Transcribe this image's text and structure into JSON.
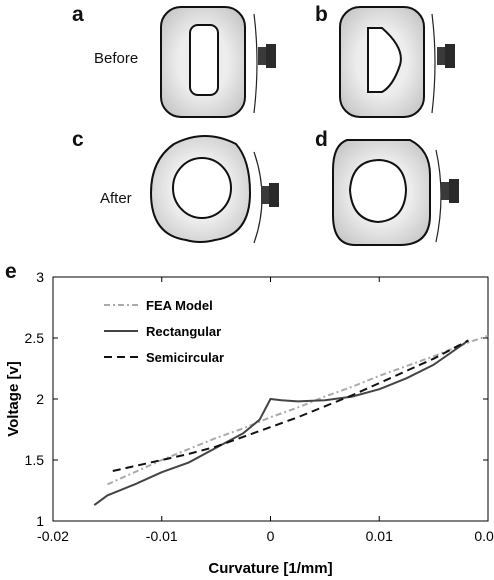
{
  "panels": {
    "a": "a",
    "b": "b",
    "c": "c",
    "d": "d",
    "e": "e"
  },
  "side_labels": {
    "before": "Before",
    "after": "After"
  },
  "colors": {
    "ring_fill": "#e0e0e0",
    "ring_fill_dark": "#c4c4c4",
    "outline": "#111111",
    "sensor": "#3a3a3a",
    "fea": "#aaaaaa",
    "rectangular": "#444444",
    "semicircular": "#111111"
  },
  "chart_data": {
    "type": "line",
    "title": "",
    "xlabel": "Curvature [1/mm]",
    "ylabel": "Voltage [v]",
    "xlim": [
      -0.02,
      0.02
    ],
    "ylim": [
      1,
      3
    ],
    "xticks": [
      -0.02,
      -0.01,
      0,
      0.01,
      0.02
    ],
    "xtick_labels": [
      "-0.02",
      "-0.01",
      "0",
      "0.01",
      "0.02"
    ],
    "yticks": [
      1,
      1.5,
      2,
      2.5,
      3
    ],
    "ytick_labels": [
      "1",
      "1.5",
      "2",
      "2.5",
      "3"
    ],
    "grid": false,
    "legend_position": "top-left",
    "series": [
      {
        "name": "FEA Model",
        "style": "dash-dot",
        "x": [
          -0.015,
          -0.0125,
          -0.01,
          -0.0075,
          -0.005,
          -0.0025,
          0,
          0.0025,
          0.005,
          0.0075,
          0.01,
          0.0125,
          0.015,
          0.0175,
          0.02
        ],
        "y": [
          1.3,
          1.4,
          1.5,
          1.59,
          1.68,
          1.76,
          1.85,
          1.93,
          2.02,
          2.1,
          2.19,
          2.27,
          2.35,
          2.44,
          2.52
        ]
      },
      {
        "name": "Rectangular",
        "style": "solid",
        "x": [
          -0.0162,
          -0.015,
          -0.0125,
          -0.01,
          -0.0075,
          -0.005,
          -0.0025,
          -0.001,
          0,
          0.001,
          0.0025,
          0.005,
          0.0075,
          0.01,
          0.0125,
          0.015,
          0.0182
        ],
        "y": [
          1.13,
          1.21,
          1.3,
          1.4,
          1.48,
          1.6,
          1.72,
          1.83,
          2.0,
          1.99,
          1.98,
          1.99,
          2.02,
          2.08,
          2.17,
          2.28,
          2.48
        ]
      },
      {
        "name": "Semicircular",
        "style": "dashed",
        "x": [
          -0.0145,
          -0.0125,
          -0.01,
          -0.0075,
          -0.005,
          -0.0025,
          0,
          0.0025,
          0.005,
          0.0075,
          0.01,
          0.0125,
          0.015,
          0.0182
        ],
        "y": [
          1.41,
          1.45,
          1.5,
          1.55,
          1.61,
          1.69,
          1.77,
          1.85,
          1.94,
          2.03,
          2.13,
          2.23,
          2.33,
          2.48
        ]
      }
    ]
  }
}
